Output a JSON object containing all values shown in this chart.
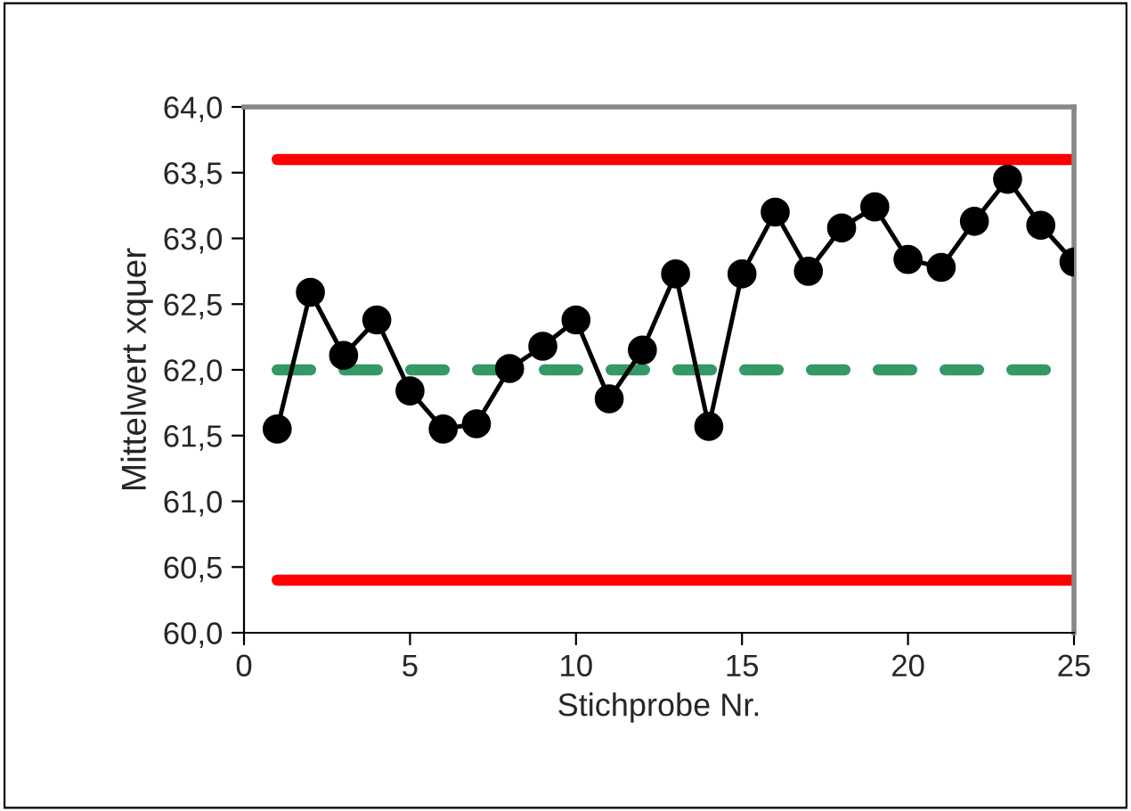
{
  "chart_data": {
    "type": "line",
    "xlabel": "Stichprobe Nr.",
    "ylabel": "Mittelwert xquer",
    "x": [
      1,
      2,
      3,
      4,
      5,
      6,
      7,
      8,
      9,
      10,
      11,
      12,
      13,
      14,
      15,
      16,
      17,
      18,
      19,
      20,
      21,
      22,
      23,
      24,
      25
    ],
    "series": [
      {
        "color": "#000000",
        "values": [
          61.55,
          62.59,
          62.11,
          62.38,
          61.84,
          61.55,
          61.59,
          62.01,
          62.18,
          62.38,
          61.78,
          62.15,
          62.73,
          61.57,
          62.73,
          63.2,
          62.75,
          63.08,
          63.24,
          62.84,
          62.78,
          63.13,
          63.45,
          63.1,
          62.82
        ]
      }
    ],
    "marker": "circle",
    "line_style": "solid",
    "grid": false,
    "xlim": [
      0,
      25
    ],
    "xticks": [
      0,
      5,
      10,
      15,
      20,
      25
    ],
    "ylim": [
      60,
      64
    ],
    "yticks": [
      {
        "value": 60,
        "label": "60,0"
      },
      {
        "value": 60.5,
        "label": "60,5"
      },
      {
        "value": 61,
        "label": "61,0"
      },
      {
        "value": 61.5,
        "label": "61,5"
      },
      {
        "value": 62,
        "label": "62,0"
      },
      {
        "value": 62.5,
        "label": "62,5"
      },
      {
        "value": 63,
        "label": "63,0"
      },
      {
        "value": 63.5,
        "label": "63,5"
      },
      {
        "value": 64,
        "label": "64,0"
      }
    ],
    "ref_lines": [
      {
        "axis": "y",
        "value": 63.6,
        "color": "#ff0000",
        "line_style": "solid"
      },
      {
        "axis": "y",
        "value": 62.0,
        "color": "#339966",
        "line_style": "dashed"
      },
      {
        "axis": "y",
        "value": 60.4,
        "color": "#ff0000",
        "line_style": "solid"
      }
    ]
  }
}
